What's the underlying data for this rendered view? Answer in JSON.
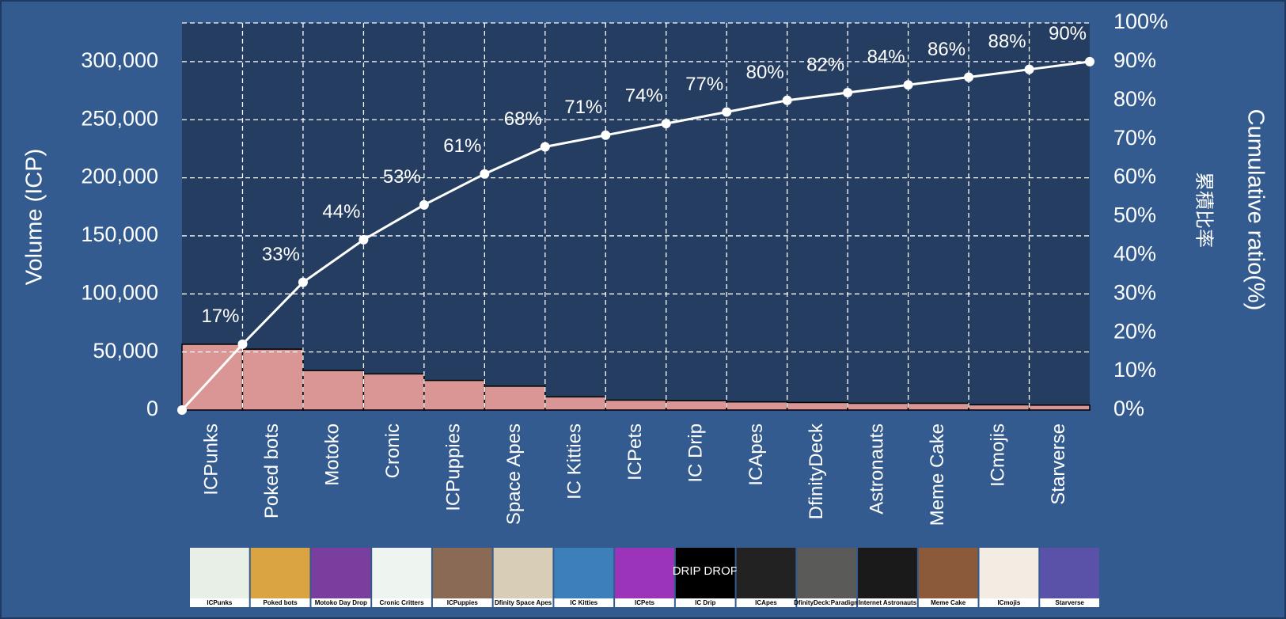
{
  "chart_data": {
    "type": "pareto",
    "categories": [
      "ICPunks",
      "Poked bots",
      "Motoko",
      "Cronic",
      "ICPuppies",
      "Space Apes",
      "IC Kitties",
      "ICPets",
      "IC Drip",
      "ICApes",
      "DfinityDeck",
      "Astronauts",
      "Meme Cake",
      "ICmojis",
      "Starverse"
    ],
    "series": [
      {
        "name": "Volume (ICP)",
        "color": "#d99694",
        "values": [
          56600,
          52400,
          34000,
          31100,
          25500,
          20500,
          11300,
          8500,
          8000,
          7000,
          6500,
          5800,
          5800,
          4500,
          4200
        ]
      },
      {
        "name": "Cumulative ratio(%)",
        "color": "#ffffff",
        "axis": "y2",
        "values": [
          17,
          33,
          44,
          53,
          61,
          68,
          71,
          74,
          77,
          80,
          82,
          84,
          86,
          88,
          90
        ],
        "value_labels": [
          "17%",
          "33%",
          "44%",
          "53%",
          "61%",
          "68%",
          "71%",
          "74%",
          "77%",
          "80%",
          "82%",
          "84%",
          "86%",
          "88%",
          "90%"
        ]
      }
    ],
    "ylabel": "Volume (ICP)",
    "y2label": "Cumulative ratio(%)",
    "y2label_sub": "累積比率",
    "ylim": [
      0,
      333333
    ],
    "yticks": [
      0,
      {
        "value": 50000,
        "label": "50,000"
      },
      {
        "value": 100000,
        "label": "100,000"
      },
      {
        "value": 150000,
        "label": "150,000"
      },
      {
        "value": 200000,
        "label": "200,000"
      },
      {
        "value": 250000,
        "label": "250,000"
      },
      {
        "value": 300000,
        "label": "300,000"
      }
    ],
    "y2lim": [
      0,
      100
    ],
    "y2ticks": [
      {
        "value": 0,
        "label": "0%"
      },
      {
        "value": 10,
        "label": "10%"
      },
      {
        "value": 20,
        "label": "20%"
      },
      {
        "value": 30,
        "label": "30%"
      },
      {
        "value": 40,
        "label": "40%"
      },
      {
        "value": 50,
        "label": "50%"
      },
      {
        "value": 60,
        "label": "60%"
      },
      {
        "value": 70,
        "label": "70%"
      },
      {
        "value": 80,
        "label": "80%"
      },
      {
        "value": 90,
        "label": "90%"
      },
      {
        "value": 100,
        "label": "100%"
      }
    ],
    "grid": true,
    "thumbnails": [
      "ICPunks",
      "Poked bots",
      "Motoko Day Drop",
      "Cronic Critters",
      "ICPuppies",
      "Dfinity Space Apes",
      "IC Kitties",
      "ICPets",
      "IC Drip",
      "ICApes",
      "DfinityDeck:Paradigm",
      "Internet Astronauts",
      "Meme Cake",
      "ICmojis",
      "Starverse"
    ],
    "thumbnail_text": "DRIP DROP"
  }
}
